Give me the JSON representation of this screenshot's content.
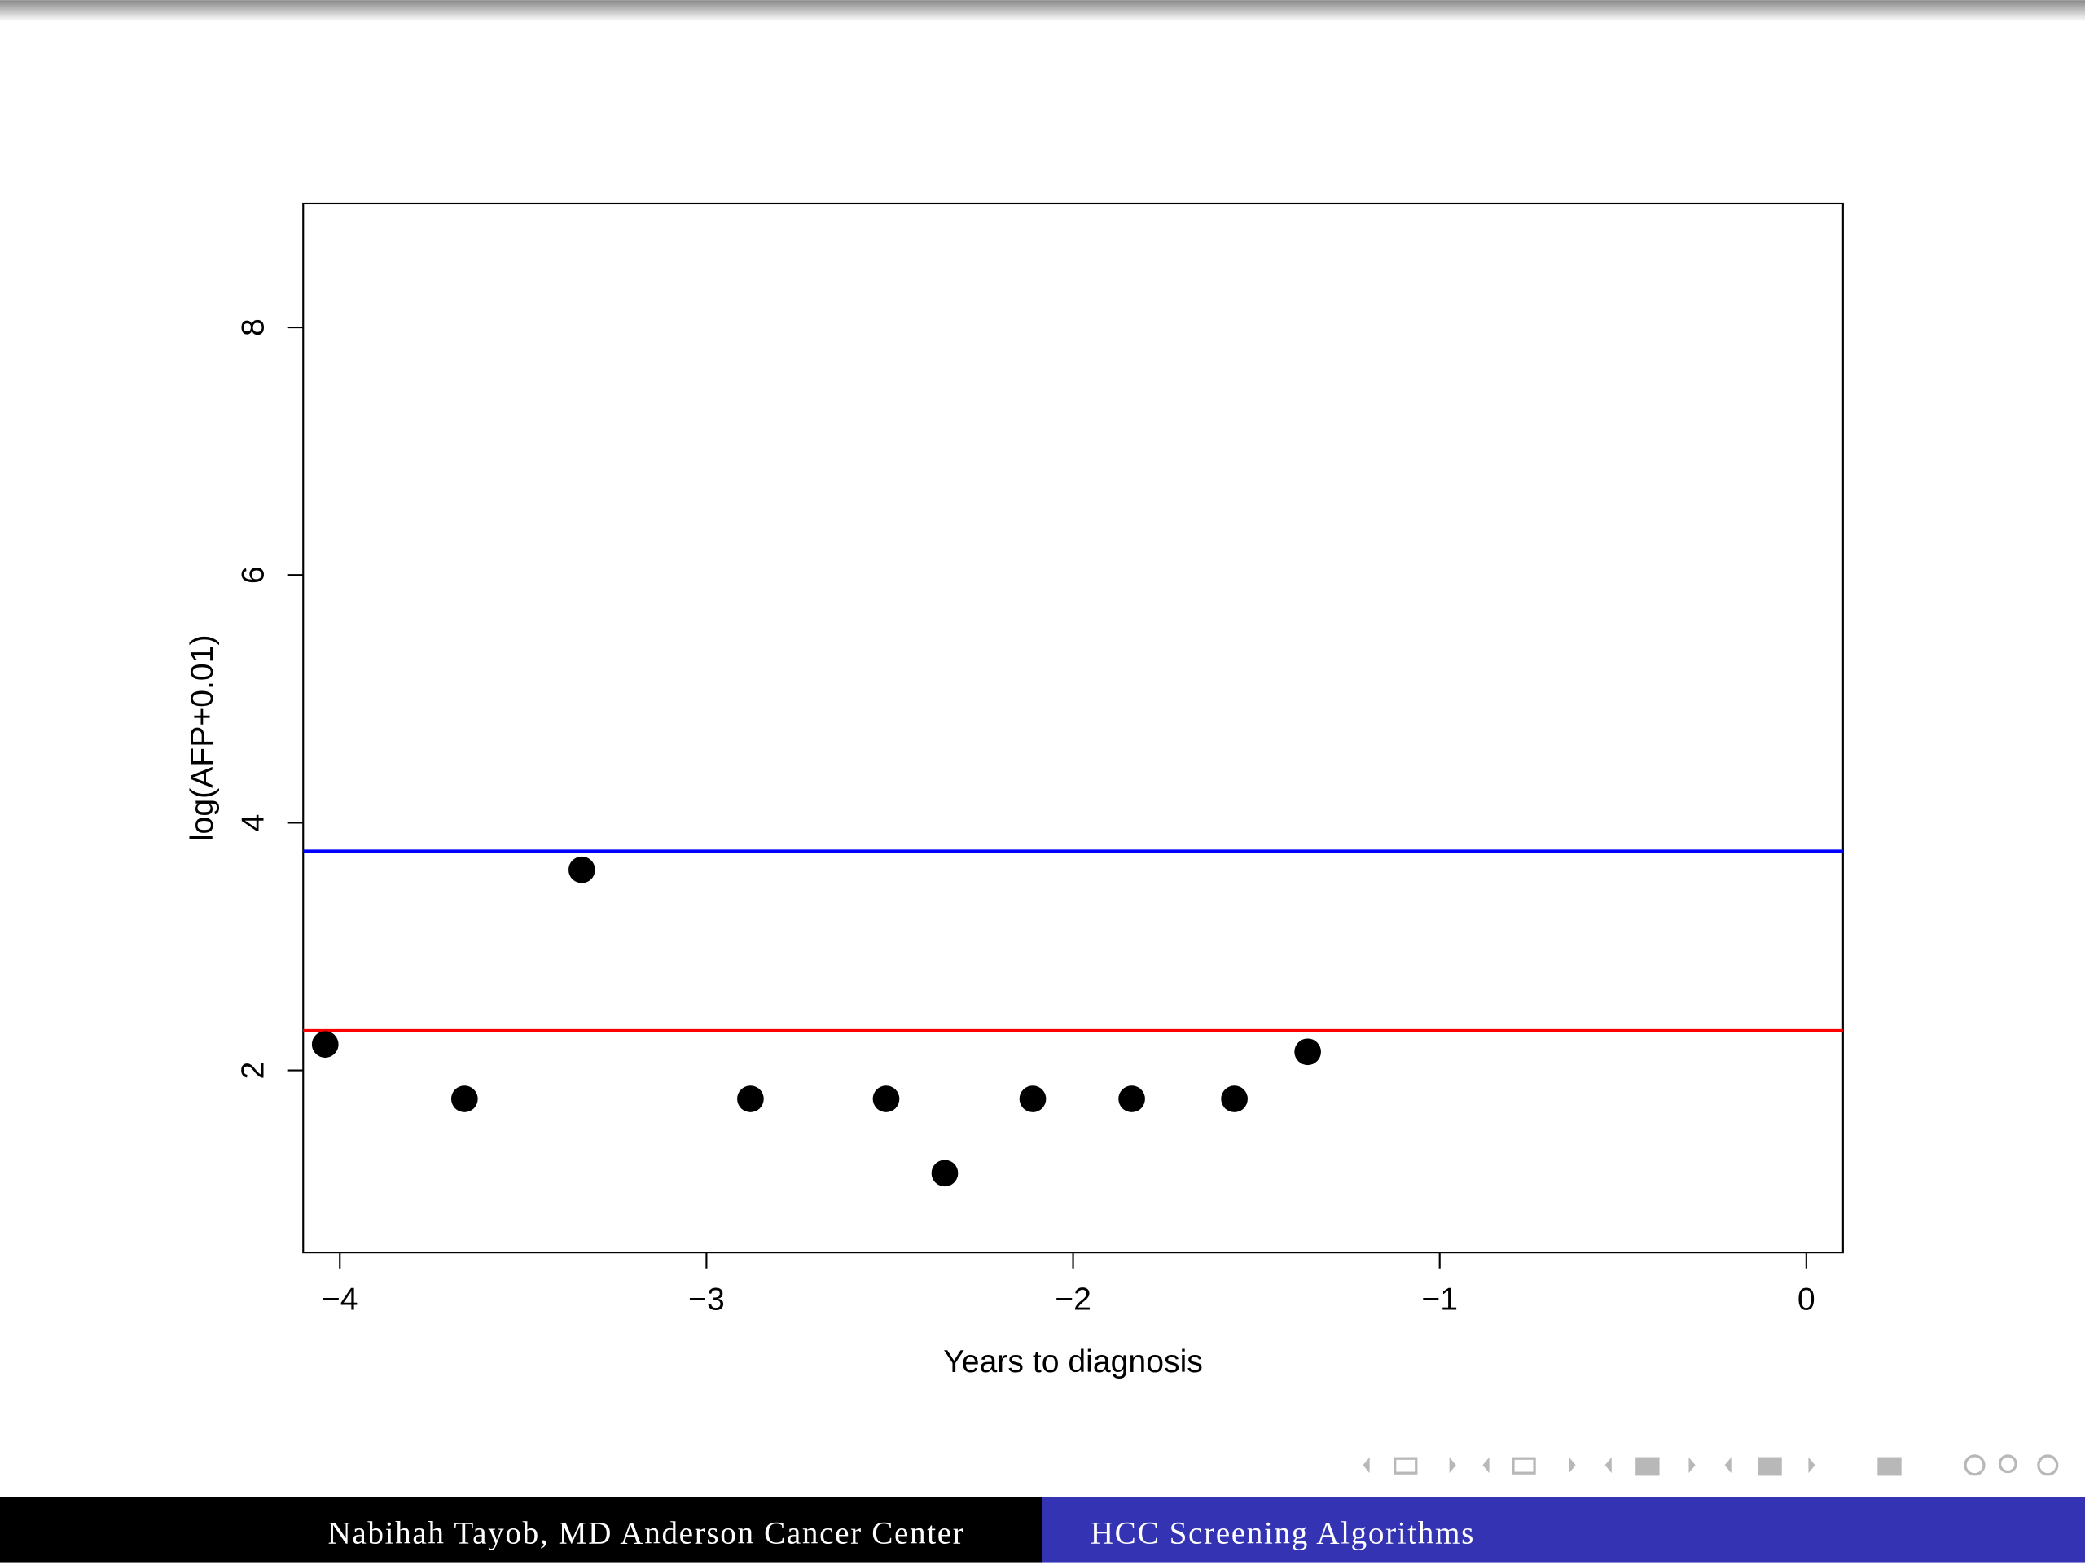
{
  "chart_data": {
    "type": "scatter",
    "x_label": "Years to diagnosis",
    "y_label": "log(AFP+0.01)",
    "x": [
      -4.04,
      -3.66,
      -3.34,
      -2.88,
      -2.51,
      -2.35,
      -2.11,
      -1.84,
      -1.56,
      -1.36
    ],
    "values": [
      2.21,
      1.77,
      3.62,
      1.77,
      1.77,
      1.17,
      1.77,
      1.77,
      1.77,
      2.15
    ],
    "color": "#000000",
    "xlim": [
      -4.1,
      0.1
    ],
    "xticks": [
      {
        "value": -4,
        "label": "−4"
      },
      {
        "value": -3,
        "label": "−3"
      },
      {
        "value": -2,
        "label": "−2"
      },
      {
        "value": -1,
        "label": "−1"
      },
      0
    ],
    "ylim": [
      0.53,
      9.0
    ],
    "yticks": [
      2,
      4,
      6,
      8
    ],
    "hlines": [
      {
        "value": 3.77,
        "color": "#0000ff"
      },
      {
        "value": 2.32,
        "color": "#ff0000"
      }
    ]
  },
  "footer": {
    "left": "Nabihah Tayob, MD Anderson Cancer Center",
    "right": "HCC Screening Algorithms"
  }
}
